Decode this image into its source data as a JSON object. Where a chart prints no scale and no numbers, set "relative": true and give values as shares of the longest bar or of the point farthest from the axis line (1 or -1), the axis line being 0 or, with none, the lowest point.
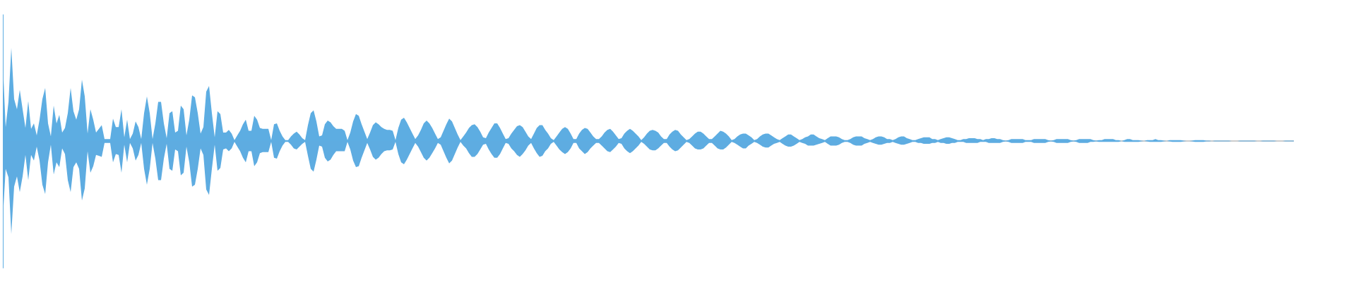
{
  "chart_data": {
    "type": "area",
    "relative": true,
    "categories": [
      null,
      null,
      null,
      null,
      null,
      null,
      null,
      null,
      null,
      null,
      null,
      null,
      null,
      null,
      null,
      null,
      null,
      null,
      null,
      null,
      null,
      null,
      null,
      null,
      null,
      null,
      null,
      null,
      null,
      null,
      null,
      null,
      null,
      null,
      null,
      null,
      null,
      null,
      null,
      null,
      null,
      null,
      null,
      null,
      null,
      null,
      null,
      null,
      null,
      null,
      null,
      null,
      null,
      null,
      null,
      null,
      null,
      null,
      null,
      null,
      null,
      null,
      null,
      null,
      null,
      null,
      null,
      null,
      null,
      null,
      null,
      null,
      null,
      null,
      null,
      null,
      null,
      null,
      null,
      null,
      null,
      null,
      null,
      null,
      null,
      null,
      null,
      null,
      null,
      null,
      null,
      null,
      null,
      null,
      null,
      null,
      null,
      null,
      null,
      null,
      null,
      null,
      null,
      null,
      null,
      null,
      null,
      null,
      null,
      null,
      null,
      null,
      null,
      null,
      null,
      null,
      null,
      null,
      null,
      null,
      null,
      null,
      null,
      null,
      null,
      null,
      null,
      null,
      null,
      null,
      null,
      null,
      null,
      null,
      null,
      null,
      null,
      null,
      null,
      null,
      null,
      null,
      null,
      null,
      null,
      null,
      null,
      null,
      null,
      null,
      null,
      null,
      null,
      null,
      null,
      null,
      null,
      null,
      null,
      null,
      null,
      null,
      null,
      null,
      null,
      null,
      null,
      null,
      null,
      null,
      null,
      null,
      null,
      null,
      null,
      null,
      null,
      null,
      null,
      null,
      null,
      null,
      null,
      null,
      null,
      null,
      null,
      null,
      null,
      null,
      null,
      null,
      null,
      null,
      null,
      null,
      null,
      null,
      null,
      null,
      null,
      null,
      null,
      null,
      null,
      null,
      null,
      null,
      null,
      null,
      null,
      null,
      null,
      null,
      null,
      null,
      null,
      null,
      null,
      null,
      null,
      null,
      null,
      null,
      null,
      null,
      null,
      null,
      null,
      null,
      null,
      null,
      null,
      null,
      null,
      null,
      null,
      null,
      null,
      null,
      null,
      null,
      null,
      null,
      null,
      null,
      null,
      null,
      null,
      null,
      null,
      null,
      null,
      null,
      null,
      null,
      null,
      null,
      null,
      null,
      null,
      null,
      null,
      null,
      null,
      null,
      null,
      null,
      null,
      null,
      null,
      null,
      null,
      null,
      null,
      null,
      null,
      null,
      null,
      null,
      null,
      null,
      null,
      null,
      null,
      null,
      null,
      null,
      null,
      null,
      null,
      null,
      null,
      null,
      null,
      null,
      null,
      null,
      null,
      null,
      null,
      null,
      null,
      null,
      null,
      null,
      null,
      null,
      null,
      null,
      null,
      null,
      null,
      null,
      null,
      null,
      null,
      null,
      null,
      null,
      null,
      null,
      null,
      null,
      null,
      null,
      null,
      null,
      null,
      null,
      null,
      null,
      null,
      null,
      null,
      null,
      null,
      null,
      null,
      null,
      null,
      null,
      null,
      null,
      null,
      null,
      null,
      null,
      null,
      null,
      null,
      null,
      null,
      null,
      null,
      null,
      null,
      null,
      null,
      null,
      null,
      null,
      null,
      null,
      null,
      null,
      null,
      null,
      null,
      null,
      null,
      null,
      null,
      null,
      null,
      null,
      null,
      null,
      null,
      null,
      null,
      null,
      null,
      null,
      null,
      null,
      null,
      null,
      null,
      null,
      null,
      null,
      null,
      null,
      null,
      null,
      null,
      null,
      null,
      null,
      null,
      null,
      null,
      null,
      null,
      null,
      null,
      null,
      null,
      null,
      null,
      null,
      null,
      null,
      null,
      null,
      null,
      null,
      null,
      null,
      null,
      null,
      null,
      null,
      null,
      null,
      null,
      null,
      null,
      null,
      null,
      null,
      null,
      null,
      null,
      null,
      null,
      null,
      null,
      null,
      null,
      null,
      null,
      null,
      null,
      null,
      null,
      null,
      null,
      null,
      null,
      null,
      null,
      null,
      null,
      null,
      null,
      null
    ],
    "series": [
      {
        "color": "#5dade2",
        "values": [
          0.83,
          0.15,
          0.42,
          1,
          0.45,
          0.34,
          0.55,
          0.34,
          0.14,
          0.43,
          0.13,
          0.19,
          0.06,
          0.23,
          0.45,
          0.57,
          0.19,
          0.05,
          0.38,
          0.19,
          0.28,
          0.09,
          0.14,
          0.3,
          0.57,
          0.32,
          0.23,
          0.34,
          0.66,
          0.48,
          0.08,
          0.34,
          0.23,
          0.09,
          0.13,
          0.17,
          0.02,
          0.02,
          0.02,
          0.24,
          0.15,
          0.15,
          0.34,
          0.04,
          0.23,
          0.02,
          0.08,
          0.21,
          0.15,
          0.02,
          0.3,
          0.48,
          0.3,
          0.02,
          0.19,
          0.42,
          0.42,
          0.19,
          0.03,
          0.3,
          0.32,
          0.09,
          0.11,
          0.38,
          0.34,
          0.06,
          0.23,
          0.49,
          0.47,
          0.3,
          0.08,
          0.15,
          0.53,
          0.59,
          0.3,
          0.04,
          0.32,
          0.29,
          0.09,
          0.09,
          0.12,
          0.08,
          0.01,
          0.06,
          0.11,
          0.18,
          0.23,
          0.11,
          0.11,
          0.27,
          0.23,
          0.14,
          0.13,
          0.13,
          0.13,
          0.01,
          0.18,
          0.19,
          0.11,
          0.05,
          0.01,
          0.01,
          0.05,
          0.08,
          0.1,
          0.07,
          0.03,
          0.01,
          0.17,
          0.3,
          0.33,
          0.21,
          0.05,
          0.06,
          0.18,
          0.22,
          0.2,
          0.16,
          0.13,
          0.13,
          0.13,
          0.11,
          0.01,
          0.09,
          0.21,
          0.29,
          0.27,
          0.18,
          0.1,
          0.02,
          0.09,
          0.17,
          0.2,
          0.18,
          0.15,
          0.13,
          0.12,
          0.12,
          0.11,
          0.01,
          0.14,
          0.23,
          0.25,
          0.2,
          0.14,
          0.08,
          0.02,
          0.06,
          0.12,
          0.19,
          0.22,
          0.19,
          0.14,
          0.08,
          0.02,
          0.04,
          0.11,
          0.18,
          0.24,
          0.21,
          0.14,
          0.07,
          0.01,
          0.05,
          0.09,
          0.14,
          0.17,
          0.18,
          0.15,
          0.1,
          0.04,
          0.03,
          0.09,
          0.14,
          0.19,
          0.19,
          0.14,
          0.08,
          0.02,
          0.03,
          0.08,
          0.12,
          0.16,
          0.17,
          0.15,
          0.1,
          0.05,
          0.02,
          0.08,
          0.14,
          0.17,
          0.17,
          0.12,
          0.08,
          0.03,
          0.01,
          0.05,
          0.09,
          0.13,
          0.15,
          0.13,
          0.08,
          0.02,
          0.02,
          0.08,
          0.12,
          0.14,
          0.13,
          0.09,
          0.05,
          0.02,
          0.02,
          0.05,
          0.09,
          0.12,
          0.13,
          0.1,
          0.06,
          0.02,
          0.03,
          0.08,
          0.11,
          0.13,
          0.11,
          0.08,
          0.05,
          0.01,
          0.04,
          0.08,
          0.11,
          0.12,
          0.11,
          0.09,
          0.05,
          0.02,
          0.02,
          0.07,
          0.1,
          0.12,
          0.11,
          0.07,
          0.04,
          0.01,
          0.02,
          0.05,
          0.08,
          0.1,
          0.1,
          0.08,
          0.05,
          0.02,
          0.02,
          0.05,
          0.08,
          0.11,
          0.1,
          0.08,
          0.05,
          0.01,
          0.02,
          0.05,
          0.07,
          0.08,
          0.08,
          0.06,
          0.04,
          0.01,
          0.02,
          0.05,
          0.07,
          0.08,
          0.08,
          0.06,
          0.04,
          0.02,
          0.01,
          0.03,
          0.05,
          0.07,
          0.07,
          0.05,
          0.03,
          0.01,
          0.02,
          0.04,
          0.05,
          0.07,
          0.07,
          0.05,
          0.03,
          0.02,
          0.01,
          0.03,
          0.05,
          0.05,
          0.05,
          0.04,
          0.02,
          0.01,
          0.01,
          0.02,
          0.04,
          0.05,
          0.05,
          0.05,
          0.03,
          0.02,
          0.01,
          0.02,
          0.04,
          0.05,
          0.05,
          0.04,
          0.02,
          0.02,
          0.01,
          0.02,
          0.04,
          0.05,
          0.05,
          0.03,
          0.02,
          0.01,
          0.01,
          0.02,
          0.03,
          0.04,
          0.04,
          0.04,
          0.02,
          0.02,
          0.01,
          0.02,
          0.03,
          0.04,
          0.04,
          0.03,
          0.02,
          0.01,
          0.01,
          0.02,
          0.02,
          0.03,
          0.03,
          0.03,
          0.02,
          0.02,
          0.01,
          0.02,
          0.02,
          0.03,
          0.03,
          0.02,
          0.02,
          0.01,
          0.004,
          0.01,
          0.02,
          0.02,
          0.02,
          0.02,
          0.02,
          0.01,
          0.01,
          0.01,
          0.02,
          0.02,
          0.02,
          0.02,
          0.02,
          0.01,
          0.004,
          0.01,
          0.02,
          0.02,
          0.02,
          0.02,
          0.02,
          0.01,
          0.004,
          0.01,
          0.02,
          0.02,
          0.02,
          0.02,
          0.02,
          0.01,
          0.004,
          0.01,
          0.01,
          0.02,
          0.02,
          0.02,
          0.02,
          0.01,
          0.01,
          0,
          0.01,
          0.02,
          0.02,
          0.01,
          0.01,
          0.01,
          0.004,
          0,
          0.01,
          0.01,
          0.01,
          0.02,
          0.01,
          0.01,
          0.004,
          0,
          0.01,
          0.01,
          0.01,
          0.01,
          0.01,
          0.004,
          0,
          0,
          0.004,
          0.01,
          0.01,
          0.01,
          0.01,
          0.004,
          0.004,
          0,
          0.004,
          0.004,
          0.004,
          0.004,
          0.004,
          0.004,
          0,
          0,
          0,
          0.004,
          0.004,
          0.004,
          0.004,
          0.004,
          0.004,
          0,
          0,
          0.004,
          0.004,
          0.004,
          0.004,
          0.004,
          0,
          0,
          0,
          0.004,
          0.004,
          0.004,
          0.004
        ]
      },
      {
        "color": "#5eace1",
        "values": [
          -0.83,
          -0.3,
          -0.39,
          -1,
          -0.49,
          -0.38,
          -0.55,
          -0.38,
          -0.15,
          -0.42,
          -0.15,
          -0.21,
          -0.06,
          -0.21,
          -0.47,
          -0.57,
          -0.23,
          -0.04,
          -0.36,
          -0.23,
          -0.28,
          -0.08,
          -0.14,
          -0.42,
          -0.55,
          -0.28,
          -0.23,
          -0.3,
          -0.64,
          -0.51,
          -0.11,
          -0.34,
          -0.27,
          -0.15,
          -0.16,
          -0.17,
          -0.02,
          -0.02,
          -0.02,
          -0.23,
          -0.14,
          -0.15,
          -0.34,
          -0.04,
          -0.23,
          -0.02,
          -0.08,
          -0.21,
          -0.15,
          -0.02,
          -0.3,
          -0.47,
          -0.3,
          -0.02,
          -0.19,
          -0.42,
          -0.42,
          -0.19,
          -0.03,
          -0.3,
          -0.32,
          -0.09,
          -0.11,
          -0.37,
          -0.34,
          -0.06,
          -0.23,
          -0.49,
          -0.47,
          -0.3,
          -0.08,
          -0.15,
          -0.52,
          -0.58,
          -0.3,
          -0.04,
          -0.32,
          -0.29,
          -0.09,
          -0.08,
          -0.11,
          -0.08,
          -0.01,
          -0.06,
          -0.11,
          -0.18,
          -0.23,
          -0.11,
          -0.11,
          -0.27,
          -0.23,
          -0.13,
          -0.12,
          -0.12,
          -0.12,
          -0.01,
          -0.18,
          -0.19,
          -0.11,
          -0.05,
          -0.01,
          -0.01,
          -0.04,
          -0.08,
          -0.09,
          -0.06,
          -0.03,
          -0.01,
          -0.16,
          -0.3,
          -0.33,
          -0.2,
          -0.05,
          -0.06,
          -0.18,
          -0.22,
          -0.2,
          -0.15,
          -0.11,
          -0.11,
          -0.11,
          -0.11,
          -0.01,
          -0.09,
          -0.21,
          -0.28,
          -0.27,
          -0.18,
          -0.1,
          -0.02,
          -0.09,
          -0.17,
          -0.2,
          -0.18,
          -0.14,
          -0.11,
          -0.1,
          -0.1,
          -0.09,
          -0.01,
          -0.14,
          -0.23,
          -0.25,
          -0.2,
          -0.14,
          -0.08,
          -0.02,
          -0.06,
          -0.12,
          -0.18,
          -0.21,
          -0.18,
          -0.13,
          -0.08,
          -0.02,
          -0.04,
          -0.11,
          -0.18,
          -0.24,
          -0.21,
          -0.14,
          -0.07,
          -0.01,
          -0.05,
          -0.08,
          -0.13,
          -0.17,
          -0.17,
          -0.14,
          -0.09,
          -0.04,
          -0.03,
          -0.09,
          -0.14,
          -0.18,
          -0.18,
          -0.14,
          -0.08,
          -0.02,
          -0.03,
          -0.08,
          -0.11,
          -0.15,
          -0.17,
          -0.14,
          -0.1,
          -0.05,
          -0.02,
          -0.08,
          -0.13,
          -0.17,
          -0.16,
          -0.11,
          -0.08,
          -0.03,
          -0.01,
          -0.05,
          -0.09,
          -0.12,
          -0.14,
          -0.12,
          -0.08,
          -0.02,
          -0.02,
          -0.08,
          -0.11,
          -0.14,
          -0.12,
          -0.08,
          -0.05,
          -0.02,
          -0.02,
          -0.05,
          -0.08,
          -0.11,
          -0.12,
          -0.09,
          -0.06,
          -0.02,
          -0.03,
          -0.08,
          -0.11,
          -0.13,
          -0.11,
          -0.08,
          -0.05,
          -0.01,
          -0.03,
          -0.06,
          -0.09,
          -0.1,
          -0.1,
          -0.08,
          -0.05,
          -0.02,
          -0.02,
          -0.06,
          -0.09,
          -0.11,
          -0.1,
          -0.07,
          -0.04,
          -0.01,
          -0.02,
          -0.05,
          -0.08,
          -0.09,
          -0.09,
          -0.08,
          -0.05,
          -0.02,
          -0.02,
          -0.05,
          -0.08,
          -0.09,
          -0.09,
          -0.07,
          -0.04,
          -0.01,
          -0.02,
          -0.04,
          -0.06,
          -0.08,
          -0.08,
          -0.05,
          -0.03,
          -0.01,
          -0.02,
          -0.04,
          -0.06,
          -0.07,
          -0.07,
          -0.05,
          -0.03,
          -0.02,
          -0.01,
          -0.03,
          -0.05,
          -0.06,
          -0.06,
          -0.05,
          -0.03,
          -0.01,
          -0.02,
          -0.03,
          -0.05,
          -0.05,
          -0.05,
          -0.04,
          -0.03,
          -0.02,
          -0.01,
          -0.03,
          -0.05,
          -0.05,
          -0.05,
          -0.04,
          -0.02,
          -0.01,
          -0.01,
          -0.02,
          -0.04,
          -0.05,
          -0.05,
          -0.05,
          -0.03,
          -0.02,
          -0.01,
          -0.02,
          -0.03,
          -0.04,
          -0.04,
          -0.03,
          -0.02,
          -0.02,
          -0.01,
          -0.02,
          -0.03,
          -0.04,
          -0.04,
          -0.03,
          -0.02,
          -0.01,
          -0.01,
          -0.02,
          -0.02,
          -0.03,
          -0.03,
          -0.03,
          -0.02,
          -0.02,
          -0.01,
          -0.02,
          -0.02,
          -0.03,
          -0.03,
          -0.02,
          -0.02,
          -0.01,
          -0.01,
          -0.01,
          -0.02,
          -0.02,
          -0.02,
          -0.02,
          -0.02,
          -0.01,
          -0.01,
          -0.01,
          -0.02,
          -0.02,
          -0.02,
          -0.02,
          -0.02,
          -0.01,
          -0.004,
          -0.01,
          -0.02,
          -0.02,
          -0.02,
          -0.02,
          -0.02,
          -0.01,
          -0.01,
          -0.01,
          -0.02,
          -0.02,
          -0.02,
          -0.02,
          -0.02,
          -0.01,
          -0.004,
          -0.01,
          -0.02,
          -0.02,
          -0.02,
          -0.02,
          -0.02,
          -0.01,
          -0.004,
          -0.01,
          -0.02,
          -0.02,
          -0.02,
          -0.02,
          -0.01,
          -0.01,
          -0.004,
          -0.01,
          -0.01,
          -0.01,
          -0.01,
          -0.01,
          -0.01,
          -0.01,
          -0.01,
          0,
          -0.01,
          -0.01,
          -0.01,
          -0.01,
          -0.01,
          -0.01,
          -0.004,
          0,
          -0.004,
          -0.01,
          -0.01,
          -0.01,
          -0.01,
          -0.01,
          -0.004,
          0,
          -0.004,
          -0.01,
          -0.01,
          -0.01,
          -0.01,
          -0.004,
          0,
          0,
          -0.004,
          -0.01,
          -0.01,
          -0.01,
          -0.01,
          -0.004,
          -0.004,
          0,
          -0.004,
          -0.004,
          -0.004,
          -0.004,
          -0.004,
          -0.004,
          0,
          0,
          0,
          -0.004,
          -0.004,
          -0.004,
          -0.004,
          -0.004,
          -0.004,
          0,
          0,
          -0.004,
          -0.004,
          -0.004,
          -0.004,
          -0.004,
          0,
          0,
          0,
          -0.004,
          -0.004,
          -0.004,
          -0.004
        ]
      }
    ]
  }
}
